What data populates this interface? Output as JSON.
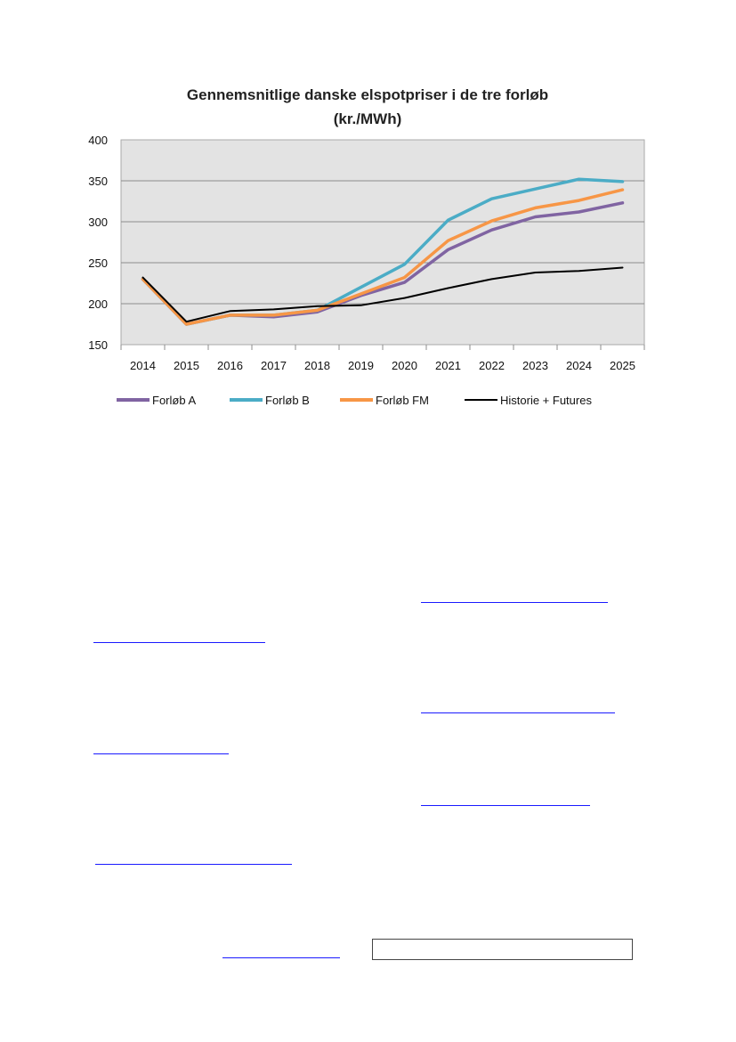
{
  "chart_data": {
    "type": "line",
    "title": [
      "Gennemsnitlige danske elspotpriser  i de tre forløb",
      "(kr./MWh)"
    ],
    "categories": [
      "2014",
      "2015",
      "2016",
      "2017",
      "2018",
      "2019",
      "2020",
      "2021",
      "2022",
      "2023",
      "2024",
      "2025"
    ],
    "y_ticks": [
      "400",
      "350",
      "300",
      "250",
      "200",
      "150"
    ],
    "ylim": [
      150,
      400
    ],
    "grid": true,
    "legend_position": "bottom",
    "series": [
      {
        "name": "Forløb A",
        "color": "#8064a2",
        "values": [
          230,
          175,
          186,
          184,
          190,
          210,
          226,
          266,
          290,
          306,
          312,
          323
        ]
      },
      {
        "name": "Forløb B",
        "color": "#4bacc6",
        "values": [
          230,
          175,
          186,
          186,
          192,
          220,
          248,
          302,
          328,
          340,
          352,
          349
        ]
      },
      {
        "name": "Forløb FM",
        "color": "#f79646",
        "values": [
          230,
          175,
          186,
          186,
          192,
          212,
          232,
          277,
          301,
          317,
          326,
          339
        ]
      },
      {
        "name": "Historie + Futures",
        "color": "#000000",
        "values": [
          232,
          178,
          191,
          193,
          197,
          198,
          207,
          219,
          230,
          238,
          240,
          244
        ]
      }
    ]
  }
}
